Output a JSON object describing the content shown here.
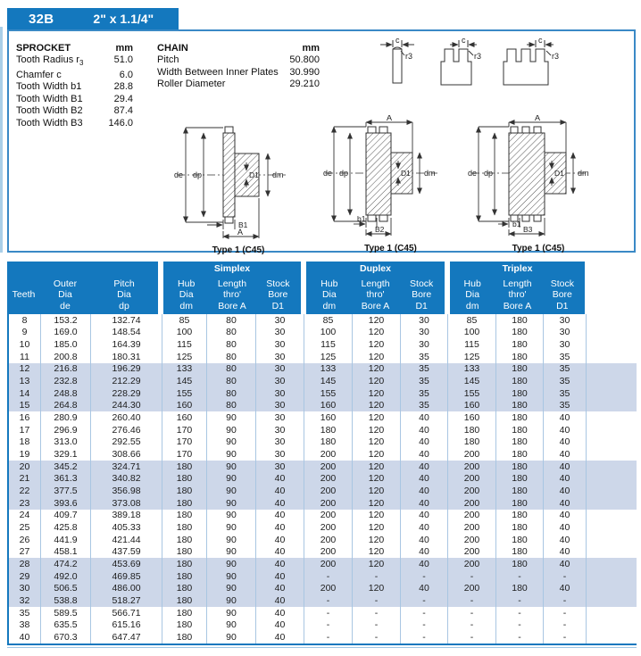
{
  "tab": {
    "code": "32B",
    "size": "2\" x 1.1/4\""
  },
  "sprocket": {
    "title": "SPROCKET",
    "unit": "mm",
    "rows": [
      {
        "label": "Tooth Radius r",
        "sub": "3",
        "value": "51.0"
      },
      {
        "label": "Chamfer c",
        "value": "6.0"
      },
      {
        "label": "Tooth Width b1",
        "value": "28.8"
      },
      {
        "label": "Tooth Width B1",
        "value": "29.4"
      },
      {
        "label": "Tooth Width B2",
        "value": "87.4"
      },
      {
        "label": "Tooth Width B3",
        "value": "146.0"
      }
    ]
  },
  "chain": {
    "title": "CHAIN",
    "unit": "mm",
    "rows": [
      {
        "label": "Pitch",
        "value": "50.800"
      },
      {
        "label": "Width Between Inner Plates",
        "value": "30.990"
      },
      {
        "label": "Roller Diameter",
        "value": "29.210"
      }
    ]
  },
  "diagrams": {
    "caption": "Type 1 (C45)",
    "labels": {
      "de": "de",
      "dp": "dp",
      "d1": "D1",
      "dm": "dm",
      "a": "A",
      "b1_small": "b1",
      "b1": "B1",
      "b2": "B2",
      "b3": "B3",
      "c": "c",
      "r3": "r3"
    }
  },
  "table": {
    "groups": [
      "Simplex",
      "Duplex",
      "Triplex"
    ],
    "base_columns": [
      {
        "id": "teeth",
        "lines": [
          "Teeth"
        ]
      },
      {
        "id": "outer-dia-de",
        "lines": [
          "Outer",
          "Dia",
          "de"
        ]
      },
      {
        "id": "pitch-dia-dp",
        "lines": [
          "Pitch",
          "Dia",
          "dp"
        ]
      }
    ],
    "group_columns": [
      {
        "id": "hub-dia-dm",
        "lines": [
          "Hub",
          "Dia",
          "dm"
        ]
      },
      {
        "id": "length-thro-bore-a",
        "lines": [
          "Length",
          "thro'",
          "Bore A"
        ]
      },
      {
        "id": "stock-bore-d1",
        "lines": [
          "Stock",
          "Bore",
          "D1"
        ]
      }
    ],
    "shaded_teeth": [
      12,
      13,
      14,
      15,
      20,
      21,
      22,
      23,
      28,
      29,
      30,
      32
    ],
    "rows": [
      [
        "8",
        "153.2",
        "132.74",
        "85",
        "80",
        "30",
        "85",
        "120",
        "30",
        "85",
        "180",
        "30"
      ],
      [
        "9",
        "169.0",
        "148.54",
        "100",
        "80",
        "30",
        "100",
        "120",
        "30",
        "100",
        "180",
        "30"
      ],
      [
        "10",
        "185.0",
        "164.39",
        "115",
        "80",
        "30",
        "115",
        "120",
        "30",
        "115",
        "180",
        "30"
      ],
      [
        "11",
        "200.8",
        "180.31",
        "125",
        "80",
        "30",
        "125",
        "120",
        "35",
        "125",
        "180",
        "35"
      ],
      [
        "12",
        "216.8",
        "196.29",
        "133",
        "80",
        "30",
        "133",
        "120",
        "35",
        "133",
        "180",
        "35"
      ],
      [
        "13",
        "232.8",
        "212.29",
        "145",
        "80",
        "30",
        "145",
        "120",
        "35",
        "145",
        "180",
        "35"
      ],
      [
        "14",
        "248.8",
        "228.29",
        "155",
        "80",
        "30",
        "155",
        "120",
        "35",
        "155",
        "180",
        "35"
      ],
      [
        "15",
        "264.8",
        "244.30",
        "160",
        "80",
        "30",
        "160",
        "120",
        "35",
        "160",
        "180",
        "35"
      ],
      [
        "16",
        "280.9",
        "260.40",
        "160",
        "90",
        "30",
        "160",
        "120",
        "40",
        "160",
        "180",
        "40"
      ],
      [
        "17",
        "296.9",
        "276.46",
        "170",
        "90",
        "30",
        "180",
        "120",
        "40",
        "180",
        "180",
        "40"
      ],
      [
        "18",
        "313.0",
        "292.55",
        "170",
        "90",
        "30",
        "180",
        "120",
        "40",
        "180",
        "180",
        "40"
      ],
      [
        "19",
        "329.1",
        "308.66",
        "170",
        "90",
        "30",
        "200",
        "120",
        "40",
        "200",
        "180",
        "40"
      ],
      [
        "20",
        "345.2",
        "324.71",
        "180",
        "90",
        "30",
        "200",
        "120",
        "40",
        "200",
        "180",
        "40"
      ],
      [
        "21",
        "361.3",
        "340.82",
        "180",
        "90",
        "40",
        "200",
        "120",
        "40",
        "200",
        "180",
        "40"
      ],
      [
        "22",
        "377.5",
        "356.98",
        "180",
        "90",
        "40",
        "200",
        "120",
        "40",
        "200",
        "180",
        "40"
      ],
      [
        "23",
        "393.6",
        "373.08",
        "180",
        "90",
        "40",
        "200",
        "120",
        "40",
        "200",
        "180",
        "40"
      ],
      [
        "24",
        "409.7",
        "389.18",
        "180",
        "90",
        "40",
        "200",
        "120",
        "40",
        "200",
        "180",
        "40"
      ],
      [
        "25",
        "425.8",
        "405.33",
        "180",
        "90",
        "40",
        "200",
        "120",
        "40",
        "200",
        "180",
        "40"
      ],
      [
        "26",
        "441.9",
        "421.44",
        "180",
        "90",
        "40",
        "200",
        "120",
        "40",
        "200",
        "180",
        "40"
      ],
      [
        "27",
        "458.1",
        "437.59",
        "180",
        "90",
        "40",
        "200",
        "120",
        "40",
        "200",
        "180",
        "40"
      ],
      [
        "28",
        "474.2",
        "453.69",
        "180",
        "90",
        "40",
        "200",
        "120",
        "40",
        "200",
        "180",
        "40"
      ],
      [
        "29",
        "492.0",
        "469.85",
        "180",
        "90",
        "40",
        "-",
        "-",
        "-",
        "-",
        "-",
        "-"
      ],
      [
        "30",
        "506.5",
        "486.00",
        "180",
        "90",
        "40",
        "200",
        "120",
        "40",
        "200",
        "180",
        "40"
      ],
      [
        "32",
        "538.8",
        "518.27",
        "180",
        "90",
        "40",
        "-",
        "-",
        "-",
        "-",
        "-",
        "-"
      ],
      [
        "35",
        "589.5",
        "566.71",
        "180",
        "90",
        "40",
        "-",
        "-",
        "-",
        "-",
        "-",
        "-"
      ],
      [
        "38",
        "635.5",
        "615.16",
        "180",
        "90",
        "40",
        "-",
        "-",
        "-",
        "-",
        "-",
        "-"
      ],
      [
        "40",
        "670.3",
        "647.47",
        "180",
        "90",
        "40",
        "-",
        "-",
        "-",
        "-",
        "-",
        "-"
      ]
    ]
  },
  "colors": {
    "accent_blue": "#1478be",
    "row_shade": "#cdd7e9",
    "grid_line": "#a9c6e2",
    "panel_border": "#3a89c6"
  }
}
